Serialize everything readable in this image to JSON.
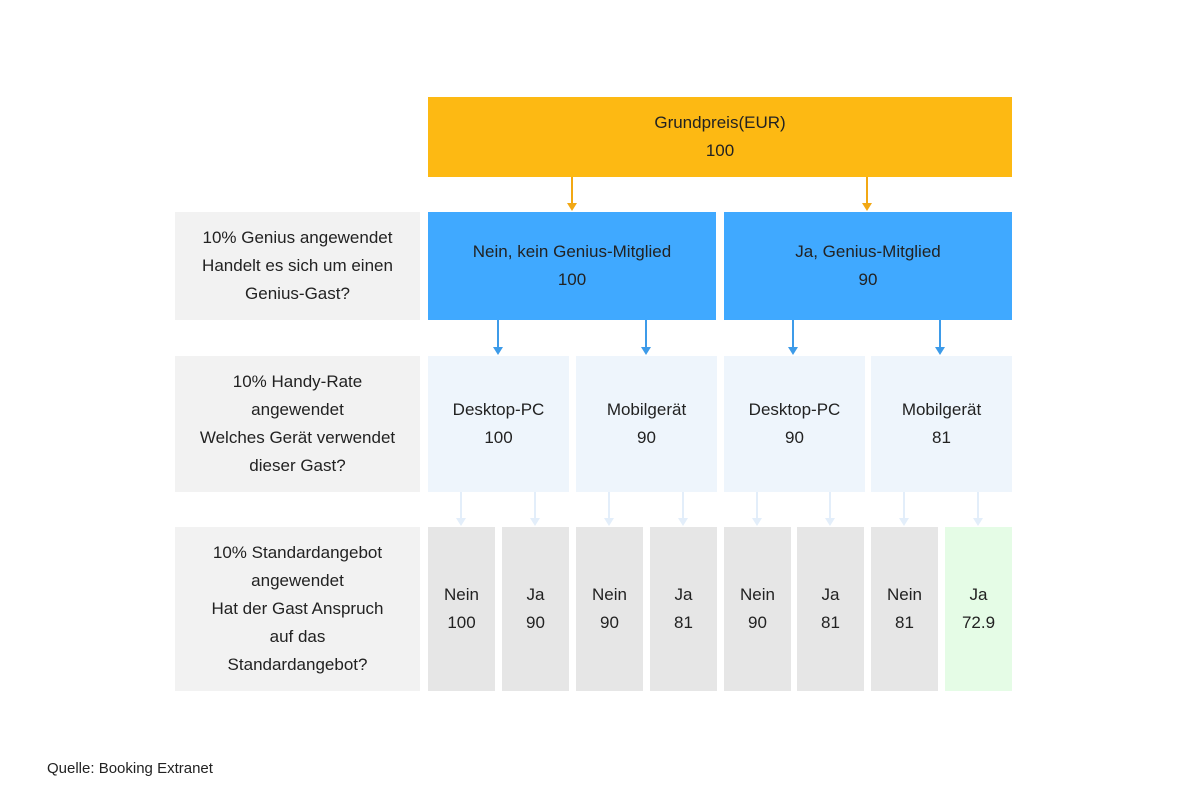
{
  "top": {
    "title": "Grundpreis(EUR)",
    "value": "100"
  },
  "rows": [
    {
      "label": [
        "10% Genius angewendet",
        "Handelt es sich um einen",
        "Genius-Gast?"
      ]
    },
    {
      "label": [
        "10% Handy-Rate",
        "angewendet",
        "Welches Gerät verwendet",
        "dieser Gast?"
      ]
    },
    {
      "label": [
        "10% Standardangebot",
        "angewendet",
        "Hat der Gast Anspruch",
        "auf das",
        "Standardangebot?"
      ]
    }
  ],
  "genius": [
    {
      "title": "Nein, kein Genius-Mitglied",
      "value": "100"
    },
    {
      "title": "Ja, Genius-Mitglied",
      "value": "90"
    }
  ],
  "device": [
    {
      "title": "Desktop-PC",
      "value": "100"
    },
    {
      "title": "Mobilgerät",
      "value": "90"
    },
    {
      "title": "Desktop-PC",
      "value": "90"
    },
    {
      "title": "Mobilgerät",
      "value": "81"
    }
  ],
  "offer": [
    {
      "title": "Nein",
      "value": "100"
    },
    {
      "title": "Ja",
      "value": "90"
    },
    {
      "title": "Nein",
      "value": "90"
    },
    {
      "title": "Ja",
      "value": "81"
    },
    {
      "title": "Nein",
      "value": "90"
    },
    {
      "title": "Ja",
      "value": "81"
    },
    {
      "title": "Nein",
      "value": "81"
    },
    {
      "title": "Ja",
      "value": "72.9"
    }
  ],
  "source": "Quelle: Booking Extranet",
  "colors": {
    "top": "#fdb913",
    "genius": "#40a9ff",
    "device": "#eef5fc",
    "offer": "#e6e6e6",
    "highlight": "#e5fce6"
  }
}
